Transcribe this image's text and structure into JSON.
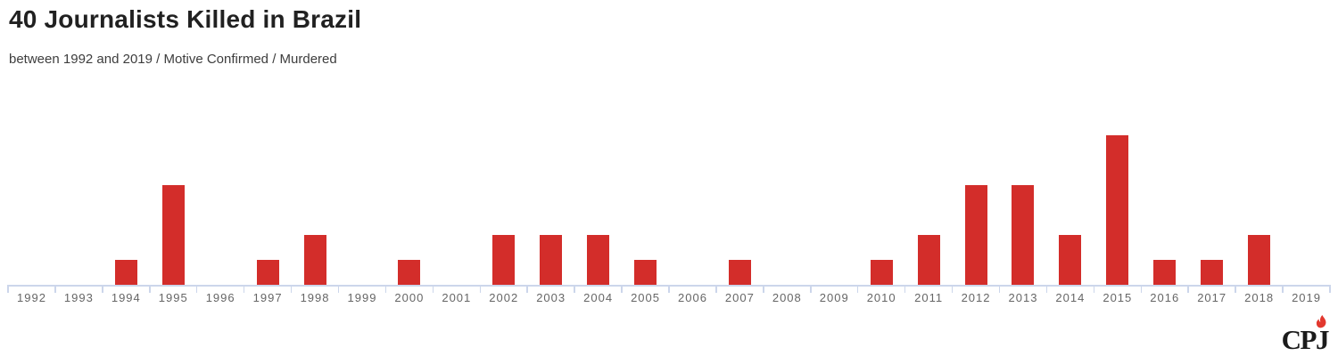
{
  "chart_data": {
    "type": "bar",
    "title": "40 Journalists Killed in Brazil",
    "subtitle": "between 1992 and 2019 / Motive Confirmed / Murdered",
    "categories": [
      "1992",
      "1993",
      "1994",
      "1995",
      "1996",
      "1997",
      "1998",
      "1999",
      "2000",
      "2001",
      "2002",
      "2003",
      "2004",
      "2005",
      "2006",
      "2007",
      "2008",
      "2009",
      "2010",
      "2011",
      "2012",
      "2013",
      "2014",
      "2015",
      "2016",
      "2017",
      "2018",
      "2019"
    ],
    "values": [
      0,
      0,
      1,
      4,
      0,
      1,
      2,
      0,
      1,
      0,
      2,
      2,
      2,
      1,
      0,
      1,
      0,
      0,
      1,
      2,
      4,
      4,
      2,
      6,
      1,
      1,
      2,
      0
    ],
    "total": 40,
    "xlabel": "",
    "ylabel": "",
    "ylim": [
      0,
      6
    ],
    "grid": false,
    "legend": false,
    "bar_color": "#d32d2a",
    "axis_color": "#ccd6eb",
    "tick_color": "#ccd6eb",
    "label_color": "#666666",
    "title_color": "#212121",
    "subtitle_color": "#3d3d3d"
  },
  "logo": {
    "text": "CPJ",
    "flame_color": "#e2382e",
    "text_color": "#1b1b1b"
  }
}
